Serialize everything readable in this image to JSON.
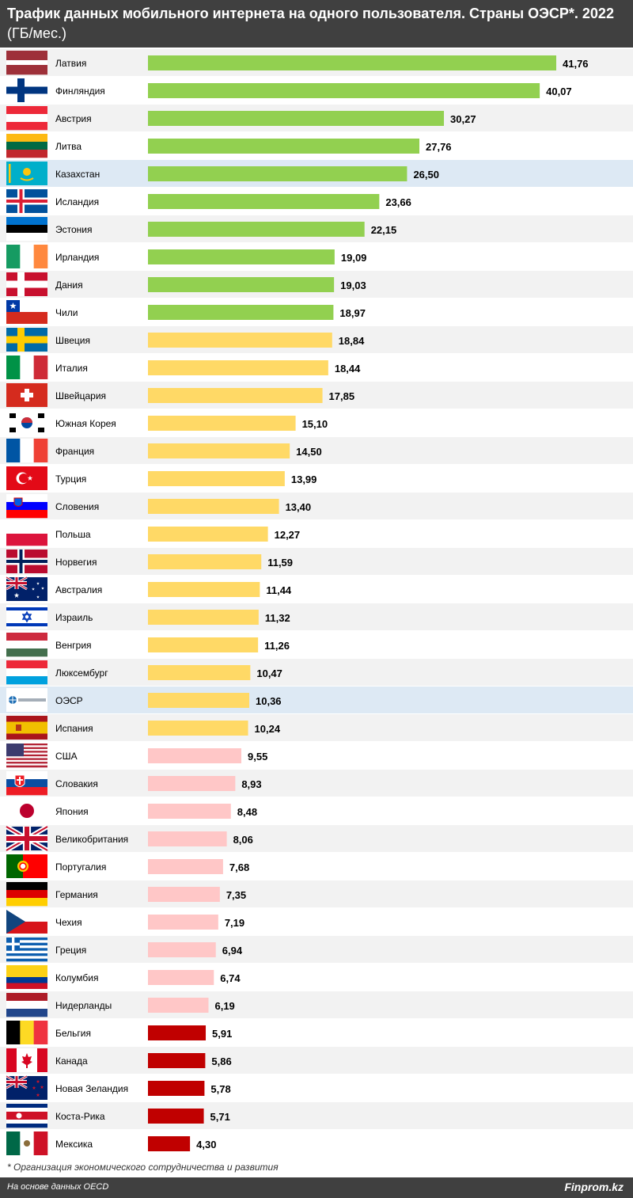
{
  "header": {
    "title_bold": "Трафик данных мобильного интернета на одного пользователя. Страны ОЭСР*. 2022",
    "title_normal": " (ГБ/мес.)"
  },
  "chart_data": {
    "type": "bar",
    "orientation": "horizontal",
    "highlight_color": "#dde9f4",
    "series": [
      {
        "name": "Латвия",
        "value": 41.76,
        "label": "41,76",
        "color": "#92d050",
        "flag": "latvia-flag-icon"
      },
      {
        "name": "Финляндия",
        "value": 40.07,
        "label": "40,07",
        "color": "#92d050",
        "flag": "finland-flag-icon"
      },
      {
        "name": "Австрия",
        "value": 30.27,
        "label": "30,27",
        "color": "#92d050",
        "flag": "austria-flag-icon"
      },
      {
        "name": "Литва",
        "value": 27.76,
        "label": "27,76",
        "color": "#92d050",
        "flag": "lithuania-flag-icon"
      },
      {
        "name": "Казахстан",
        "value": 26.5,
        "label": "26,50",
        "color": "#92d050",
        "flag": "kazakhstan-flag-icon",
        "highlight": true
      },
      {
        "name": "Исландия",
        "value": 23.66,
        "label": "23,66",
        "color": "#92d050",
        "flag": "iceland-flag-icon"
      },
      {
        "name": "Эстония",
        "value": 22.15,
        "label": "22,15",
        "color": "#92d050",
        "flag": "estonia-flag-icon"
      },
      {
        "name": "Ирландия",
        "value": 19.09,
        "label": "19,09",
        "color": "#92d050",
        "flag": "ireland-flag-icon"
      },
      {
        "name": "Дания",
        "value": 19.03,
        "label": "19,03",
        "color": "#92d050",
        "flag": "denmark-flag-icon"
      },
      {
        "name": "Чили",
        "value": 18.97,
        "label": "18,97",
        "color": "#92d050",
        "flag": "chile-flag-icon"
      },
      {
        "name": "Швеция",
        "value": 18.84,
        "label": "18,84",
        "color": "#ffd966",
        "flag": "sweden-flag-icon"
      },
      {
        "name": "Италия",
        "value": 18.44,
        "label": "18,44",
        "color": "#ffd966",
        "flag": "italy-flag-icon"
      },
      {
        "name": "Швейцария",
        "value": 17.85,
        "label": "17,85",
        "color": "#ffd966",
        "flag": "switzerland-flag-icon"
      },
      {
        "name": "Южная Корея",
        "value": 15.1,
        "label": "15,10",
        "color": "#ffd966",
        "flag": "south-korea-flag-icon"
      },
      {
        "name": "Франция",
        "value": 14.5,
        "label": "14,50",
        "color": "#ffd966",
        "flag": "france-flag-icon"
      },
      {
        "name": "Турция",
        "value": 13.99,
        "label": "13,99",
        "color": "#ffd966",
        "flag": "turkey-flag-icon"
      },
      {
        "name": "Словения",
        "value": 13.4,
        "label": "13,40",
        "color": "#ffd966",
        "flag": "slovenia-flag-icon"
      },
      {
        "name": "Польша",
        "value": 12.27,
        "label": "12,27",
        "color": "#ffd966",
        "flag": "poland-flag-icon"
      },
      {
        "name": "Норвегия",
        "value": 11.59,
        "label": "11,59",
        "color": "#ffd966",
        "flag": "norway-flag-icon"
      },
      {
        "name": "Австралия",
        "value": 11.44,
        "label": "11,44",
        "color": "#ffd966",
        "flag": "australia-flag-icon"
      },
      {
        "name": "Израиль",
        "value": 11.32,
        "label": "11,32",
        "color": "#ffd966",
        "flag": "israel-flag-icon"
      },
      {
        "name": "Венгрия",
        "value": 11.26,
        "label": "11,26",
        "color": "#ffd966",
        "flag": "hungary-flag-icon"
      },
      {
        "name": "Люксембург",
        "value": 10.47,
        "label": "10,47",
        "color": "#ffd966",
        "flag": "luxembourg-flag-icon"
      },
      {
        "name": "ОЭСР",
        "value": 10.36,
        "label": "10,36",
        "color": "#ffd966",
        "flag": "oecd-logo-icon",
        "highlight": true
      },
      {
        "name": "Испания",
        "value": 10.24,
        "label": "10,24",
        "color": "#ffd966",
        "flag": "spain-flag-icon"
      },
      {
        "name": "США",
        "value": 9.55,
        "label": "9,55",
        "color": "#ffc7c7",
        "flag": "usa-flag-icon"
      },
      {
        "name": "Словакия",
        "value": 8.93,
        "label": "8,93",
        "color": "#ffc7c7",
        "flag": "slovakia-flag-icon"
      },
      {
        "name": "Япония",
        "value": 8.48,
        "label": "8,48",
        "color": "#ffc7c7",
        "flag": "japan-flag-icon"
      },
      {
        "name": "Великобритания",
        "value": 8.06,
        "label": "8,06",
        "color": "#ffc7c7",
        "flag": "uk-flag-icon"
      },
      {
        "name": "Португалия",
        "value": 7.68,
        "label": "7,68",
        "color": "#ffc7c7",
        "flag": "portugal-flag-icon"
      },
      {
        "name": "Германия",
        "value": 7.35,
        "label": "7,35",
        "color": "#ffc7c7",
        "flag": "germany-flag-icon"
      },
      {
        "name": "Чехия",
        "value": 7.19,
        "label": "7,19",
        "color": "#ffc7c7",
        "flag": "czechia-flag-icon"
      },
      {
        "name": "Греция",
        "value": 6.94,
        "label": "6,94",
        "color": "#ffc7c7",
        "flag": "greece-flag-icon"
      },
      {
        "name": "Колумбия",
        "value": 6.74,
        "label": "6,74",
        "color": "#ffc7c7",
        "flag": "colombia-flag-icon"
      },
      {
        "name": "Нидерланды",
        "value": 6.19,
        "label": "6,19",
        "color": "#ffc7c7",
        "flag": "netherlands-flag-icon"
      },
      {
        "name": "Бельгия",
        "value": 5.91,
        "label": "5,91",
        "color": "#c00000",
        "flag": "belgium-flag-icon"
      },
      {
        "name": "Канада",
        "value": 5.86,
        "label": "5,86",
        "color": "#c00000",
        "flag": "canada-flag-icon"
      },
      {
        "name": "Новая Зеландия",
        "value": 5.78,
        "label": "5,78",
        "color": "#c00000",
        "flag": "new-zealand-flag-icon"
      },
      {
        "name": "Коста-Рика",
        "value": 5.71,
        "label": "5,71",
        "color": "#c00000",
        "flag": "costa-rica-flag-icon"
      },
      {
        "name": "Мексика",
        "value": 4.3,
        "label": "4,30",
        "color": "#c00000",
        "flag": "mexico-flag-icon"
      }
    ]
  },
  "footnote": "* Организация экономического сотрудничества и развития",
  "footer": {
    "source": "На основе данных OECD",
    "brand": "Finprom.kz"
  }
}
